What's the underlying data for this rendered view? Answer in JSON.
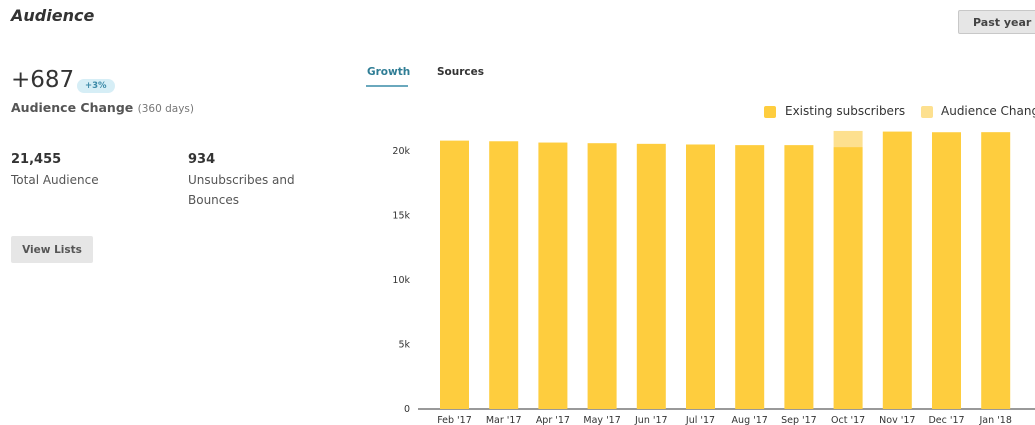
{
  "header": {
    "title": "Audience",
    "range_selector": "Past year"
  },
  "summary": {
    "change_value": "+687",
    "change_percent": "+3%",
    "change_label": "Audience Change",
    "change_period": "(360 days)",
    "total_audience_value": "21,455",
    "total_audience_label": "Total Audience",
    "unsubscribes_value": "934",
    "unsubscribes_label": "Unsubscribes and Bounces",
    "view_lists_label": "View Lists"
  },
  "tabs": {
    "growth": "Growth",
    "sources": "Sources",
    "active": "growth"
  },
  "colors": {
    "existing": "#fecd3e",
    "audience_change": "#fde08f",
    "axis": "#333333"
  },
  "chart_data": {
    "type": "bar",
    "stacked": true,
    "categories": [
      "Feb '17",
      "Mar '17",
      "Apr '17",
      "May '17",
      "Jun '17",
      "Jul '17",
      "Aug '17",
      "Sep '17",
      "Oct '17",
      "Nov '17",
      "Dec '17",
      "Jan '18"
    ],
    "series": [
      {
        "name": "Existing subscribers",
        "values": [
          20800,
          20750,
          20650,
          20600,
          20550,
          20500,
          20450,
          20450,
          20300,
          21500,
          21450,
          21455
        ]
      },
      {
        "name": "Audience Change",
        "values": [
          0,
          0,
          0,
          0,
          0,
          0,
          0,
          0,
          1250,
          0,
          0,
          0
        ]
      }
    ],
    "ylim": [
      0,
      21700
    ],
    "yticks": [
      0,
      5000,
      10000,
      15000,
      20000
    ],
    "ytick_labels": [
      "0",
      "5k",
      "10k",
      "15k",
      "20k"
    ],
    "legend_position": "top-right",
    "grid": false
  }
}
